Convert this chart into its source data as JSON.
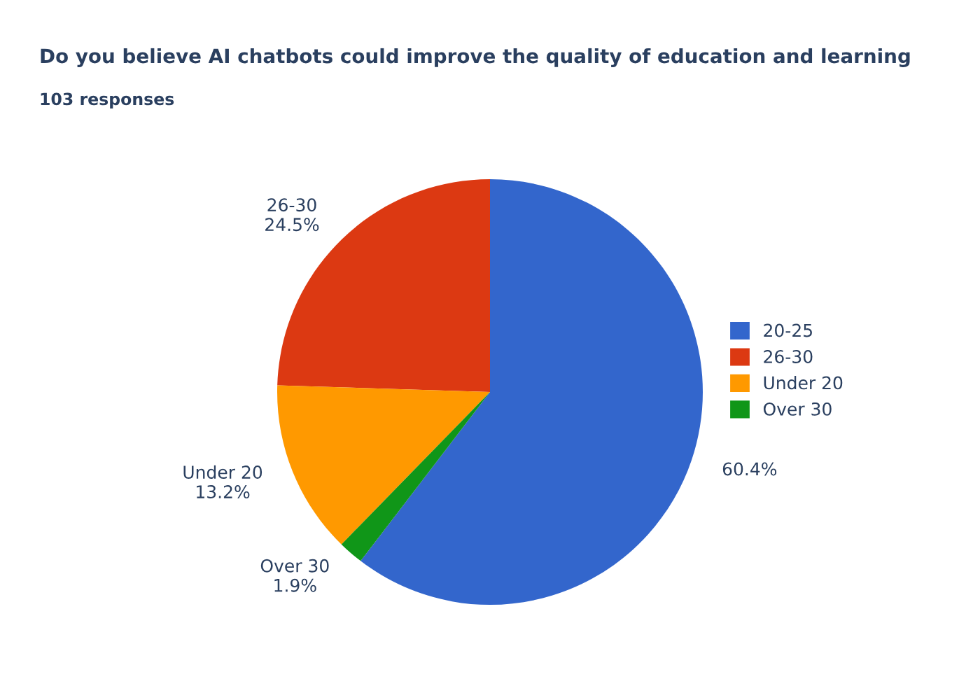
{
  "chart_data": {
    "type": "pie",
    "title": "Do you believe AI chatbots could improve the quality of education and learning",
    "subtitle": "103 responses",
    "categories": [
      "20-25",
      "26-30",
      "Under 20",
      "Over 30"
    ],
    "values": [
      60.4,
      24.5,
      13.2,
      1.9
    ],
    "colors": [
      "#3366cc",
      "#dc3912",
      "#ff9900",
      "#109618"
    ],
    "value_labels": [
      "60.4%",
      "26-30\n24.5%",
      "Under 20\n13.2%",
      "Over 30\n1.9%"
    ],
    "legend": "right"
  }
}
